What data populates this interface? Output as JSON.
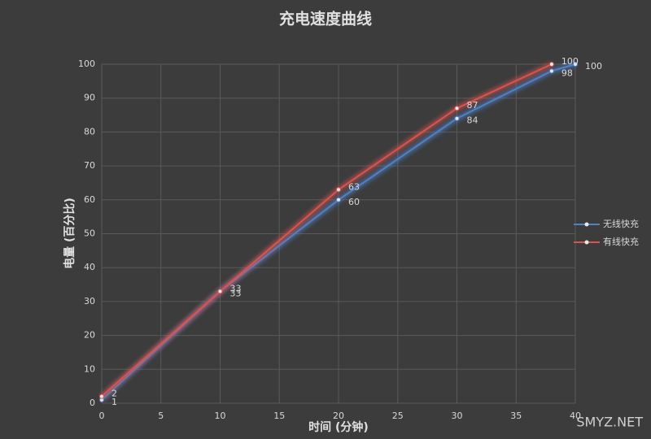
{
  "chart_data": {
    "type": "line",
    "title": "充电速度曲线",
    "x_label": "时间 (分钟)",
    "y_label": "电量 (百分比)",
    "series": [
      {
        "name": "无线快充",
        "color": "#4f81c7",
        "x": [
          0,
          10,
          20,
          30,
          38,
          40
        ],
        "values": [
          1,
          33,
          60,
          84,
          98,
          100
        ]
      },
      {
        "name": "有线快充",
        "color": "#d9534f",
        "x": [
          0,
          10,
          20,
          30,
          38
        ],
        "values": [
          2,
          33,
          63,
          87,
          100
        ]
      }
    ],
    "xlim": [
      0,
      40
    ],
    "xticks": [
      0,
      5,
      10,
      15,
      20,
      25,
      30,
      35,
      40
    ],
    "ylim": [
      0,
      100
    ],
    "yticks": [
      0,
      10,
      20,
      30,
      40,
      50,
      60,
      70,
      80,
      90,
      100
    ],
    "grid": true,
    "legend": "right",
    "watermark": "SMYZ.NET"
  }
}
